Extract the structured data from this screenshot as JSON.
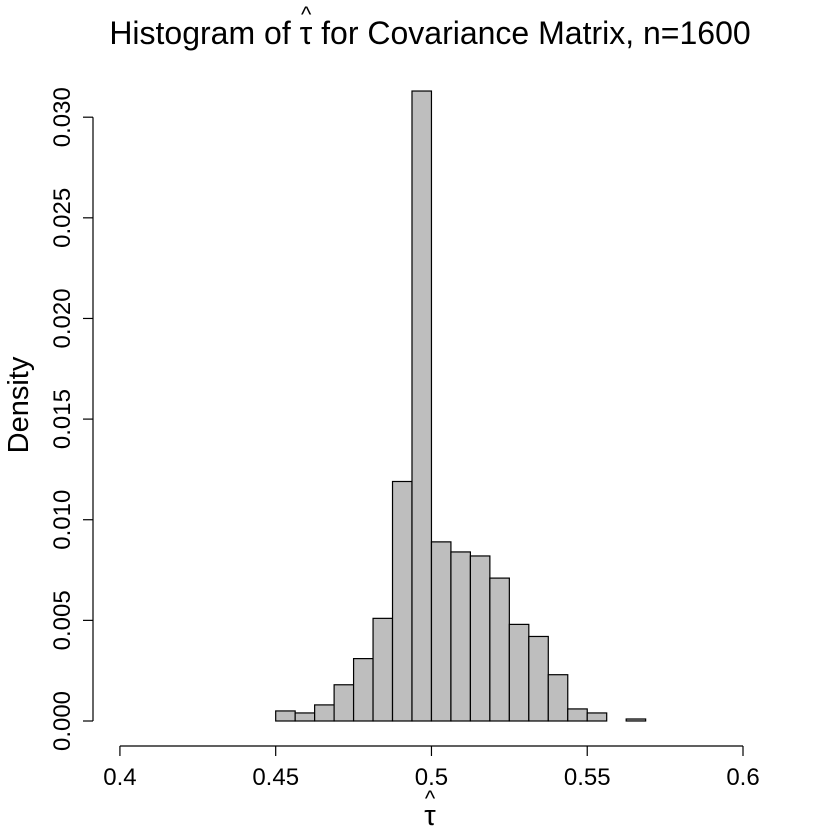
{
  "chart_data": {
    "type": "bar",
    "title_prefix": "Histogram of ",
    "title_symbol": "τ",
    "title_suffix": " for Covariance Matrix, n=1600",
    "xlabel_symbol": "τ",
    "hat_glyph": "^",
    "ylabel": "Density",
    "xlim": [
      0.392,
      0.6
    ],
    "ylim": [
      0,
      0.0315
    ],
    "xticks": [
      0.4,
      0.45,
      0.5,
      0.55,
      0.6
    ],
    "xtick_labels": [
      "0.4",
      "0.45",
      "0.5",
      "0.55",
      "0.6"
    ],
    "yticks": [
      0.0,
      0.005,
      0.01,
      0.015,
      0.02,
      0.025,
      0.03
    ],
    "ytick_labels": [
      "0.000",
      "0.005",
      "0.010",
      "0.015",
      "0.020",
      "0.025",
      "0.030"
    ],
    "bin_width": 0.00625,
    "bin_starts": [
      0.45,
      0.45625,
      0.4625,
      0.46875,
      0.475,
      0.48125,
      0.4875,
      0.49375,
      0.5,
      0.50625,
      0.5125,
      0.51875,
      0.525,
      0.53125,
      0.5375,
      0.54375,
      0.55,
      0.55625,
      0.5625
    ],
    "values": [
      0.0005,
      0.0004,
      0.0008,
      0.0018,
      0.0031,
      0.0051,
      0.0119,
      0.0313,
      0.0089,
      0.0084,
      0.0082,
      0.0071,
      0.0048,
      0.0042,
      0.0023,
      0.0006,
      0.0004,
      0.0,
      0.0001
    ]
  }
}
